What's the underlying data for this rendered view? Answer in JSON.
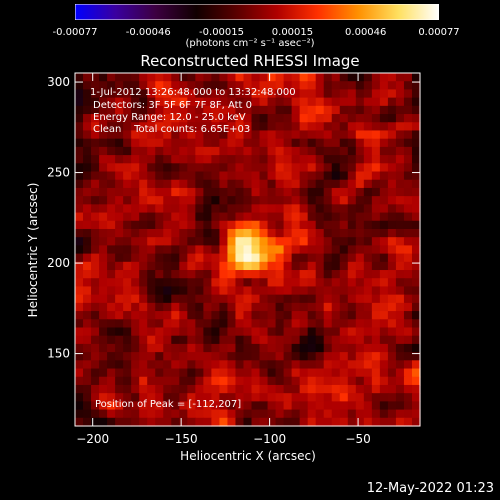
{
  "colorbar": {
    "colors": [
      "#0000ff",
      "#3a00a0",
      "#3c0040",
      "#100000",
      "#5a0000",
      "#b00000",
      "#ff3000",
      "#ff9000",
      "#ffe060",
      "#ffffff"
    ],
    "ticks": [
      {
        "label": "-0.00077",
        "value": -0.00077
      },
      {
        "label": "-0.00046",
        "value": -0.00046
      },
      {
        "label": "-0.00015",
        "value": -0.00015
      },
      {
        "label": "0.00015",
        "value": 0.00015
      },
      {
        "label": "0.00046",
        "value": 0.00046
      },
      {
        "label": "0.00077",
        "value": 0.00077
      }
    ],
    "units": "(photons cm⁻² s⁻¹ asec⁻²)"
  },
  "chart_data": {
    "type": "heatmap",
    "title": "Reconstructed RHESSI Image",
    "xlabel": "Heliocentric X (arcsec)",
    "ylabel": "Heliocentric Y (arcsec)",
    "xlim": [
      -210,
      -15
    ],
    "ylim": [
      110,
      305
    ],
    "xticks": [
      {
        "label": "−200",
        "value": -200
      },
      {
        "label": "−150",
        "value": -150
      },
      {
        "label": "−100",
        "value": -100
      },
      {
        "label": "−50",
        "value": -50
      }
    ],
    "yticks": [
      {
        "label": "150",
        "value": 150
      },
      {
        "label": "200",
        "value": 200
      },
      {
        "label": "250",
        "value": 250
      },
      {
        "label": "300",
        "value": 300
      }
    ],
    "vmin": -0.00077,
    "vmax": 0.00077,
    "peak": {
      "x": -112,
      "y": 207
    },
    "annotations": {
      "time": "1-Jul-2012 13:26:48.000 to 13:32:48.000",
      "detectors": "Detectors: 3F 5F 6F 7F 8F, Att 0",
      "energy": "Energy Range: 12.0 - 25.0 keV",
      "clean": "Clean    Total counts: 6.65E+03",
      "peak_text": "Position of Peak = [-112,207]"
    }
  },
  "footer": {
    "timestamp": "12-May-2022 01:23"
  }
}
